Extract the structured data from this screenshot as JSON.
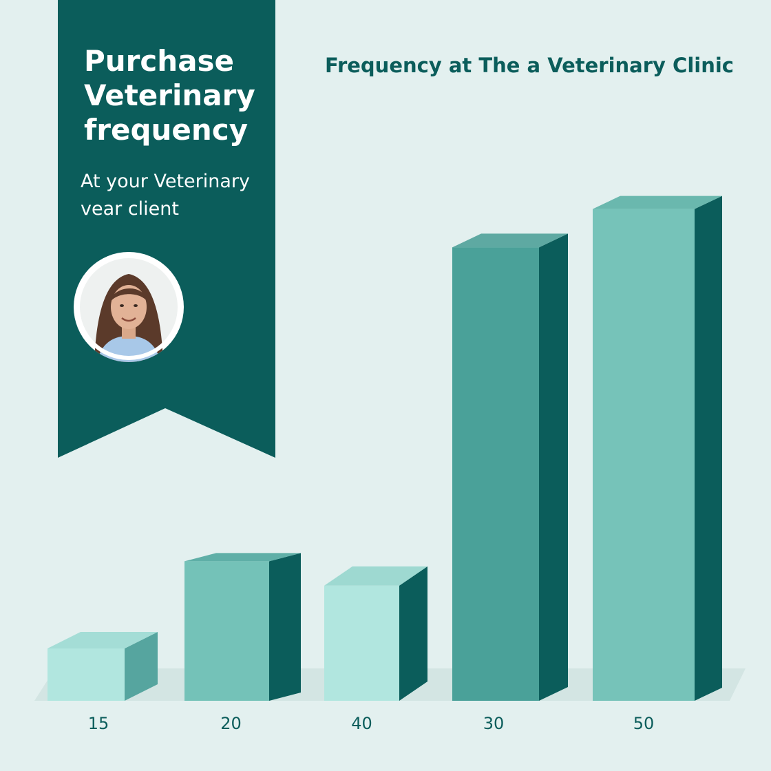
{
  "banner": {
    "title_lines": [
      "Purchase",
      "Veterinary",
      "frequency"
    ],
    "subtitle_lines": [
      "At your Veterinary",
      "vear client"
    ],
    "avatar_icon": "person-avatar-icon",
    "color": "#0b5d5b"
  },
  "chart_data": {
    "type": "bar",
    "title": "Frequency at The a Veterinary Clinic",
    "categories": [
      "15",
      "20",
      "40",
      "30",
      "50"
    ],
    "values": [
      15,
      40,
      33,
      130,
      141
    ],
    "xlabel": "",
    "ylabel": "",
    "ylim": [
      0,
      150
    ],
    "grid": false,
    "bar_style": "3d",
    "colors": {
      "face": [
        "#b1e6df",
        "#74c2b8",
        "#b1e6df",
        "#4aa199",
        "#76c3b9"
      ],
      "side": [
        "#56a59f",
        "#0b5d5b",
        "#0b5d5b",
        "#0b5d5b",
        "#0b5d5b"
      ],
      "top": [
        "#a4ddd6",
        "#5fafa7",
        "#9ed9d1",
        "#5ea9a2",
        "#6ab8ae"
      ]
    }
  }
}
